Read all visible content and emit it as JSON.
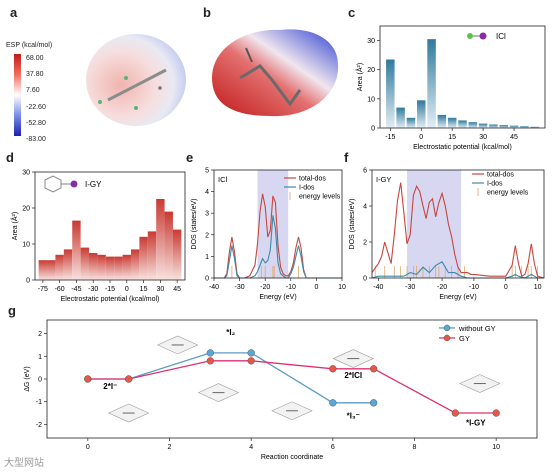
{
  "panel_labels": {
    "a": "a",
    "b": "b",
    "c": "c",
    "d": "d",
    "e": "e",
    "f": "f",
    "g": "g"
  },
  "esp_legend": {
    "title": "ESP (kcal/mol)",
    "ticks": [
      "68.00",
      "37.80",
      "7.60",
      "-22.60",
      "-52.80",
      "-83.00"
    ]
  },
  "watermark": "大型网站",
  "colors": {
    "bar_blue_top": "#2f7a9e",
    "bar_blue_bottom": "#e3eef3",
    "bar_red_top": "#c93a32",
    "bar_red_bottom": "#f8e2df",
    "total_dos": "#c8463c",
    "i_dos": "#3e8aa8",
    "energy_levels": "#e1a868",
    "band": "#b7b7e8",
    "gy_line": "#e0316f",
    "without_gy_line": "#5b9cc2",
    "atom_red": "#e4574a",
    "atom_blue": "#5aa6d6"
  },
  "chart_data": [
    {
      "id": "c",
      "type": "bar",
      "title": "ICl",
      "xlabel": "Electrostatic potential (kcal/mol)",
      "ylabel": "Area (Å²)",
      "ylim": [
        0,
        35
      ],
      "yticks": [
        0,
        10,
        20,
        30
      ],
      "xlim": [
        -20,
        60
      ],
      "xticks": [
        -15,
        0,
        15,
        30,
        45
      ],
      "x": [
        -15,
        -10,
        -5,
        0,
        5,
        10,
        15,
        20,
        25,
        30,
        35,
        40,
        45,
        50,
        55
      ],
      "values": [
        23.5,
        7,
        3.5,
        9.5,
        30.5,
        4.5,
        3.5,
        2.6,
        2,
        1.5,
        1.2,
        1,
        0.8,
        0.6,
        0.4
      ]
    },
    {
      "id": "d",
      "type": "bar",
      "title": "I-GY",
      "xlabel": "Electrostatic potential (kcal/mol)",
      "ylabel": "Area (Å²)",
      "ylim": [
        0,
        30
      ],
      "yticks": [
        0,
        10,
        20,
        30
      ],
      "xlim": [
        -82,
        52
      ],
      "xticks": [
        -75,
        -60,
        -45,
        -30,
        -15,
        0,
        15,
        30,
        45
      ],
      "x": [
        -75,
        -67.5,
        -60,
        -52.5,
        -45,
        -37.5,
        -30,
        -22.5,
        -15,
        -7.5,
        0,
        7.5,
        15,
        22.5,
        30,
        37.5,
        45
      ],
      "values": [
        5.5,
        5.5,
        7,
        8.5,
        16.5,
        9,
        7.5,
        7,
        6.5,
        6.5,
        7,
        8.5,
        12,
        13.5,
        22.5,
        19,
        14
      ]
    },
    {
      "id": "e",
      "type": "line",
      "title": "ICl",
      "xlabel": "Energy (eV)",
      "ylabel": "DOS (states/eV)",
      "xlim": [
        -40,
        10
      ],
      "ylim": [
        0,
        5
      ],
      "xticks": [
        -40,
        -30,
        -20,
        -10,
        0,
        10
      ],
      "yticks": [
        0,
        1,
        2,
        3,
        4,
        5
      ],
      "band": [
        -23,
        -11
      ],
      "series": [
        {
          "name": "total-dos",
          "x": [
            -40,
            -36,
            -35,
            -34,
            -33,
            -32,
            -31,
            -30,
            -28,
            -26,
            -24,
            -23,
            -22,
            -21,
            -20,
            -19,
            -18,
            -17,
            -16,
            -15,
            -14,
            -13,
            -12,
            -11,
            -10,
            -9,
            -8,
            -7,
            -6,
            -5,
            -4,
            -2,
            0,
            5,
            10
          ],
          "y": [
            0,
            0,
            0.2,
            1.2,
            1.9,
            1.2,
            0.2,
            0,
            0,
            0.1,
            0.6,
            1.6,
            3.1,
            3.9,
            3.3,
            1.9,
            2.2,
            3.8,
            3.5,
            1.5,
            0.5,
            0.2,
            0.1,
            0.1,
            0.3,
            0.7,
            1.4,
            1.9,
            1.4,
            0.4,
            0,
            0,
            0,
            0,
            0
          ]
        },
        {
          "name": "I-dos",
          "x": [
            -40,
            -36,
            -35,
            -34,
            -33,
            -32,
            -31,
            -30,
            -28,
            -26,
            -24,
            -23,
            -22,
            -21,
            -20,
            -19,
            -18,
            -17,
            -16,
            -15,
            -14,
            -13,
            -12,
            -11,
            -10,
            -9,
            -8,
            -7,
            -6,
            -5,
            -4,
            -2,
            0,
            5,
            10
          ],
          "y": [
            0,
            0,
            0.1,
            0.8,
            1.5,
            0.9,
            0.1,
            0,
            0,
            0,
            0.1,
            0.3,
            0.6,
            0.9,
            0.7,
            0.8,
            1.3,
            2.9,
            2.3,
            0.7,
            0.2,
            0.1,
            0,
            0,
            0.2,
            0.5,
            1,
            1.5,
            1,
            0.3,
            0,
            0,
            0,
            0,
            0
          ]
        },
        {
          "name": "energy levels",
          "x": [
            -33,
            -21.5,
            -20,
            -17,
            -16.5,
            -7
          ],
          "y": [
            0.7,
            0.7,
            0.7,
            0.7,
            0.7,
            0.7
          ]
        }
      ]
    },
    {
      "id": "f",
      "type": "line",
      "title": "I-GY",
      "xlabel": "Energy (eV)",
      "ylabel": "DOS (states/eV)",
      "xlim": [
        -42,
        12
      ],
      "ylim": [
        0,
        6
      ],
      "xticks": [
        -40,
        -30,
        -20,
        -10,
        0,
        10
      ],
      "yticks": [
        0,
        2,
        4,
        6
      ],
      "band": [
        -31,
        -14
      ],
      "series": [
        {
          "name": "total-dos",
          "x": [
            -42,
            -40,
            -39,
            -38,
            -37,
            -36,
            -35,
            -34,
            -33,
            -32,
            -31,
            -30,
            -29,
            -28,
            -27,
            -26,
            -25,
            -24,
            -23,
            -22,
            -21,
            -20,
            -19,
            -18,
            -17,
            -16,
            -15,
            -14,
            -13,
            -12,
            -11,
            -10,
            -5,
            0,
            2,
            3,
            4,
            5,
            6,
            7,
            8,
            9,
            10,
            12
          ],
          "y": [
            0.3,
            0.8,
            1.2,
            2,
            1.4,
            0.8,
            2.4,
            4.3,
            5.3,
            3.6,
            1.9,
            2.4,
            4.6,
            5.1,
            4.8,
            4,
            3.3,
            4.2,
            4.4,
            3.4,
            4.2,
            4.7,
            4,
            3,
            2.3,
            1.3,
            0.6,
            0.3,
            0.3,
            0.3,
            0.2,
            0.2,
            0.1,
            0.1,
            0.7,
            1.8,
            0.8,
            0.1,
            0.2,
            0.8,
            1.9,
            0.8,
            0.1,
            0
          ]
        },
        {
          "name": "I-dos",
          "x": [
            -42,
            -40,
            -35,
            -32,
            -30,
            -28,
            -26,
            -24,
            -22,
            -20,
            -18,
            -16,
            -14,
            -12,
            -10,
            -5,
            0,
            2,
            3,
            4,
            6,
            8,
            10,
            12
          ],
          "y": [
            0,
            0.1,
            0.1,
            0.1,
            0.3,
            0.2,
            0.6,
            0.3,
            0.7,
            0.9,
            0.3,
            0.3,
            0.1,
            0,
            0,
            0,
            0,
            0.1,
            0.2,
            0.1,
            0,
            0.2,
            0,
            0
          ]
        },
        {
          "name": "energy levels",
          "x": [
            -41,
            -38,
            -35,
            -33,
            -31,
            -29,
            -28,
            -26,
            -24,
            -22,
            -21,
            -19,
            -17,
            -15,
            -13,
            2,
            3,
            5,
            7,
            8,
            10
          ],
          "y": [
            0.5,
            0.5,
            0.5,
            0.5,
            0.5,
            0.5,
            0.5,
            0.5,
            0.5,
            0.5,
            0.5,
            0.5,
            0.5,
            0.5,
            0.5,
            0.5,
            0.5,
            0.5,
            0.5,
            0.5,
            0.5
          ]
        }
      ]
    },
    {
      "id": "g",
      "type": "line",
      "xlabel": "Reaction coordinate",
      "ylabel": "ΔG (eV)",
      "xlim": [
        -1,
        11
      ],
      "ylim": [
        -2.6,
        2.6
      ],
      "xticks": [
        0,
        2,
        4,
        6,
        8,
        10
      ],
      "yticks": [
        -2,
        -1,
        0,
        1,
        2
      ],
      "series": [
        {
          "name": "without GY",
          "x": [
            0,
            1,
            3,
            4,
            6,
            7
          ],
          "y": [
            0,
            0,
            1.15,
            1.15,
            -1.05,
            -1.05
          ]
        },
        {
          "name": "GY",
          "x": [
            0,
            1,
            3,
            4,
            6,
            7,
            9,
            10
          ],
          "y": [
            0,
            0,
            0.8,
            0.8,
            0.45,
            0.45,
            -1.5,
            -1.5
          ]
        }
      ],
      "annotations": [
        {
          "text": "2*I⁻",
          "x": 0.55,
          "y": -0.45
        },
        {
          "text": "*I₂",
          "x": 3.5,
          "y": 1.95
        },
        {
          "text": "2*ICl",
          "x": 6.5,
          "y": 0.05
        },
        {
          "text": "*I₃⁻",
          "x": 6.5,
          "y": -1.75
        },
        {
          "text": "*I-GY",
          "x": 9.5,
          "y": -2.05
        }
      ]
    }
  ]
}
